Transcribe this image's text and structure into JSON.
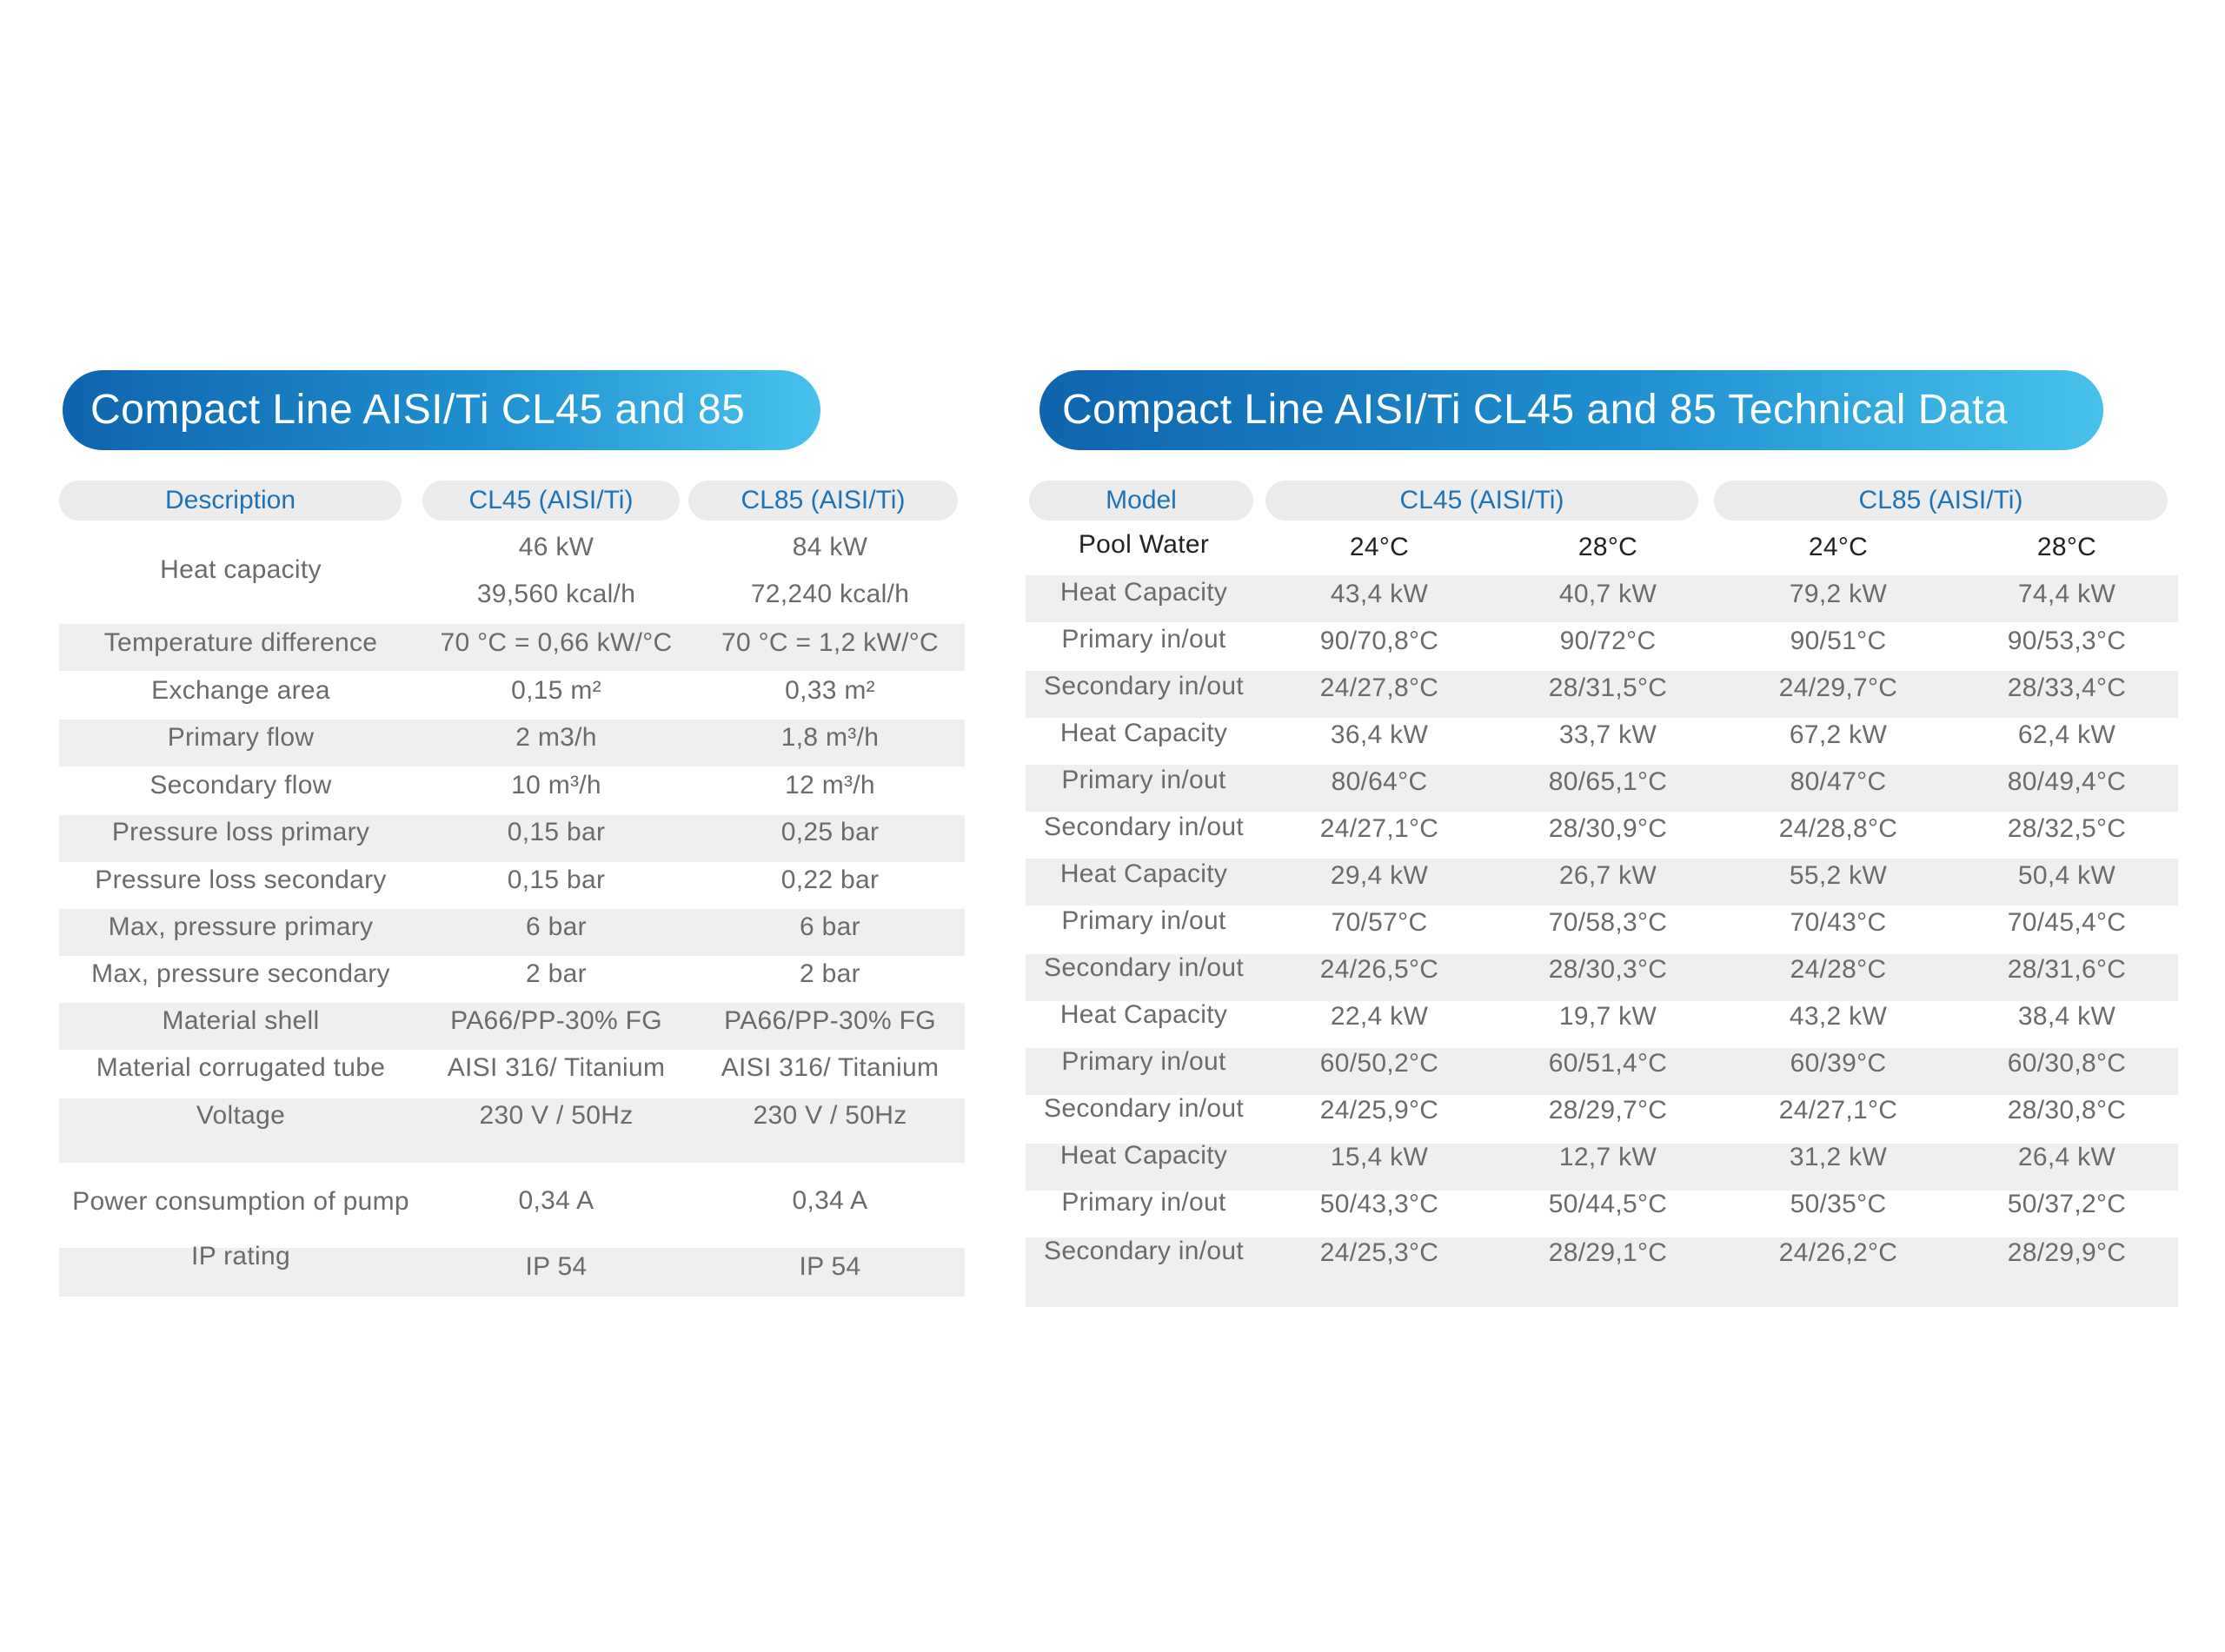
{
  "table1": {
    "title": "Compact Line AISI/Ti CL45 and 85",
    "headers": [
      "Description",
      "CL45 (AISI/Ti)",
      "CL85 (AISI/Ti)"
    ],
    "rows": [
      {
        "label": "Heat capacity",
        "cl45": [
          "46 kW",
          "39,560 kcal/h"
        ],
        "cl85": [
          "84 kW",
          "72,240 kcal/h"
        ]
      },
      {
        "label": "Temperature difference",
        "cl45": "70 °C = 0,66 kW/°C",
        "cl85": "70 °C = 1,2 kW/°C"
      },
      {
        "label": "Exchange area",
        "cl45": "0,15 m²",
        "cl85": "0,33 m²"
      },
      {
        "label": "Primary flow",
        "cl45": "2 m3/h",
        "cl85": "1,8 m³/h"
      },
      {
        "label": "Secondary flow",
        "cl45": "10 m³/h",
        "cl85": "12 m³/h"
      },
      {
        "label": "Pressure loss primary",
        "cl45": "0,15 bar",
        "cl85": "0,25 bar"
      },
      {
        "label": "Pressure loss secondary",
        "cl45": "0,15 bar",
        "cl85": "0,22 bar"
      },
      {
        "label": "Max, pressure primary",
        "cl45": "6 bar",
        "cl85": "6 bar"
      },
      {
        "label": "Max, pressure secondary",
        "cl45": "2 bar",
        "cl85": "2 bar"
      },
      {
        "label": "Material shell",
        "cl45": "PA66/PP-30% FG",
        "cl85": "PA66/PP-30% FG"
      },
      {
        "label": "Material corrugated tube",
        "cl45": "AISI 316/ Titanium",
        "cl85": "AISI 316/ Titanium"
      },
      {
        "label": "Voltage",
        "cl45": "230 V / 50Hz",
        "cl85": "230 V / 50Hz"
      },
      {
        "label": "Power consumption of pump",
        "cl45": "0,34 A",
        "cl85": "0,34 A"
      },
      {
        "label": "IP rating",
        "cl45": "IP 54",
        "cl85": "IP 54"
      }
    ]
  },
  "table2": {
    "title": "Compact Line AISI/Ti CL45 and 85 Technical Data",
    "headers": [
      "Model",
      "CL45 (AISI/Ti)",
      "CL85 (AISI/Ti)"
    ],
    "pool_water_label": "Pool Water",
    "temps": [
      "24°C",
      "28°C",
      "24°C",
      "28°C"
    ],
    "rows": [
      {
        "label": "Heat Capacity",
        "values": [
          "43,4 kW",
          "40,7 kW",
          "79,2 kW",
          "74,4 kW"
        ]
      },
      {
        "label": "Primary in/out",
        "values": [
          "90/70,8°C",
          "90/72°C",
          "90/51°C",
          "90/53,3°C"
        ]
      },
      {
        "label": "Secondary in/out",
        "values": [
          "24/27,8°C",
          "28/31,5°C",
          "24/29,7°C",
          "28/33,4°C"
        ]
      },
      {
        "label": "Heat Capacity",
        "values": [
          "36,4 kW",
          "33,7 kW",
          "67,2 kW",
          "62,4 kW"
        ]
      },
      {
        "label": "Primary in/out",
        "values": [
          "80/64°C",
          "80/65,1°C",
          "80/47°C",
          "80/49,4°C"
        ]
      },
      {
        "label": "Secondary in/out",
        "values": [
          "24/27,1°C",
          "28/30,9°C",
          "24/28,8°C",
          "28/32,5°C"
        ]
      },
      {
        "label": "Heat Capacity",
        "values": [
          "29,4 kW",
          "26,7 kW",
          "55,2 kW",
          "50,4 kW"
        ]
      },
      {
        "label": "Primary in/out",
        "values": [
          "70/57°C",
          "70/58,3°C",
          "70/43°C",
          "70/45,4°C"
        ]
      },
      {
        "label": "Secondary in/out",
        "values": [
          "24/26,5°C",
          "28/30,3°C",
          "24/28°C",
          "28/31,6°C"
        ]
      },
      {
        "label": "Heat Capacity",
        "values": [
          "22,4 kW",
          "19,7 kW",
          "43,2 kW",
          "38,4 kW"
        ]
      },
      {
        "label": "Primary in/out",
        "values": [
          "60/50,2°C",
          "60/51,4°C",
          "60/39°C",
          "60/30,8°C"
        ]
      },
      {
        "label": "Secondary in/out",
        "values": [
          "24/25,9°C",
          "28/29,7°C",
          "24/27,1°C",
          "28/30,8°C"
        ]
      },
      {
        "label": "Heat Capacity",
        "values": [
          "15,4 kW",
          "12,7 kW",
          "31,2 kW",
          "26,4 kW"
        ]
      },
      {
        "label": "Primary in/out",
        "values": [
          "50/43,3°C",
          "50/44,5°C",
          "50/35°C",
          "50/37,2°C"
        ]
      },
      {
        "label": "Secondary in/out",
        "values": [
          "24/25,3°C",
          "28/29,1°C",
          "24/26,2°C",
          "28/29,9°C"
        ]
      }
    ]
  }
}
